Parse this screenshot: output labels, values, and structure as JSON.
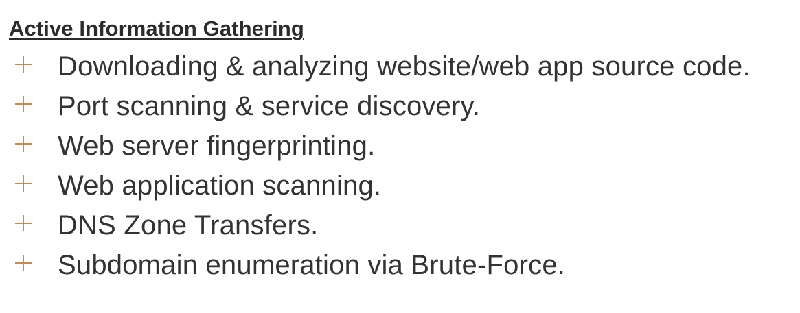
{
  "heading": "Active Information Gathering",
  "colors": {
    "text": "#333333",
    "bullet_accent": "#c98a4e"
  },
  "bullet_icon": "plus-icon",
  "bullets": [
    "Downloading & analyzing website/web app source code.",
    "Port scanning & service discovery.",
    "Web server fingerprinting.",
    "Web application scanning.",
    "DNS Zone Transfers.",
    "Subdomain enumeration via Brute-Force."
  ]
}
